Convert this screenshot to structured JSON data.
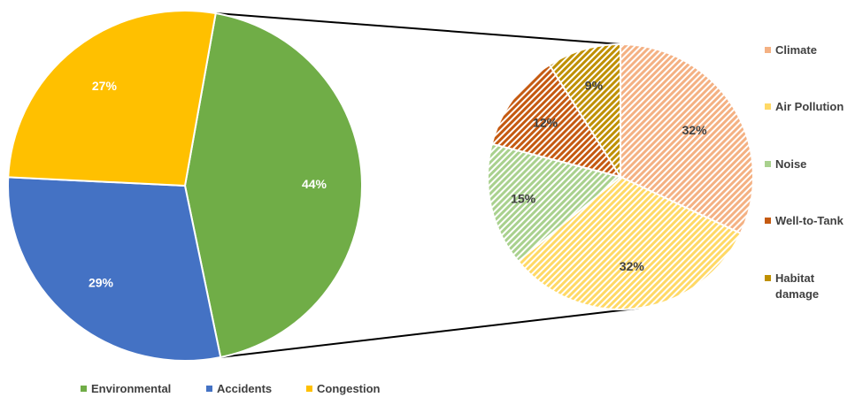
{
  "chart_data": [
    {
      "type": "pie",
      "series": [
        {
          "values": [
            44,
            29,
            27
          ]
        }
      ],
      "categories": [
        "Environmental",
        "Accidents",
        "Congestion"
      ],
      "labels": [
        "44%",
        "29%",
        "27%"
      ],
      "colors": [
        "#70AD47",
        "#4472C4",
        "#FFC000"
      ],
      "legend_position": "bottom",
      "expanded_slice": "Environmental"
    },
    {
      "type": "pie",
      "series": [
        {
          "values": [
            32,
            32,
            15,
            12,
            9
          ]
        }
      ],
      "categories": [
        "Climate",
        "Air Pollution",
        "Noise",
        "Well-to-Tank",
        "Habitat damage"
      ],
      "legend_labels": [
        [
          "Climate"
        ],
        [
          "Air Pollution"
        ],
        [
          "Noise"
        ],
        [
          "Well-to-Tank"
        ],
        [
          "Habitat",
          "damage"
        ]
      ],
      "labels": [
        "32%",
        "32%",
        "15%",
        "12%",
        "9%"
      ],
      "colors": [
        "#F4B183",
        "#FFD966",
        "#A9D18E",
        "#C55A11",
        "#BF9000"
      ],
      "fill_pattern": "diagonal-hatch",
      "legend_position": "right"
    }
  ]
}
